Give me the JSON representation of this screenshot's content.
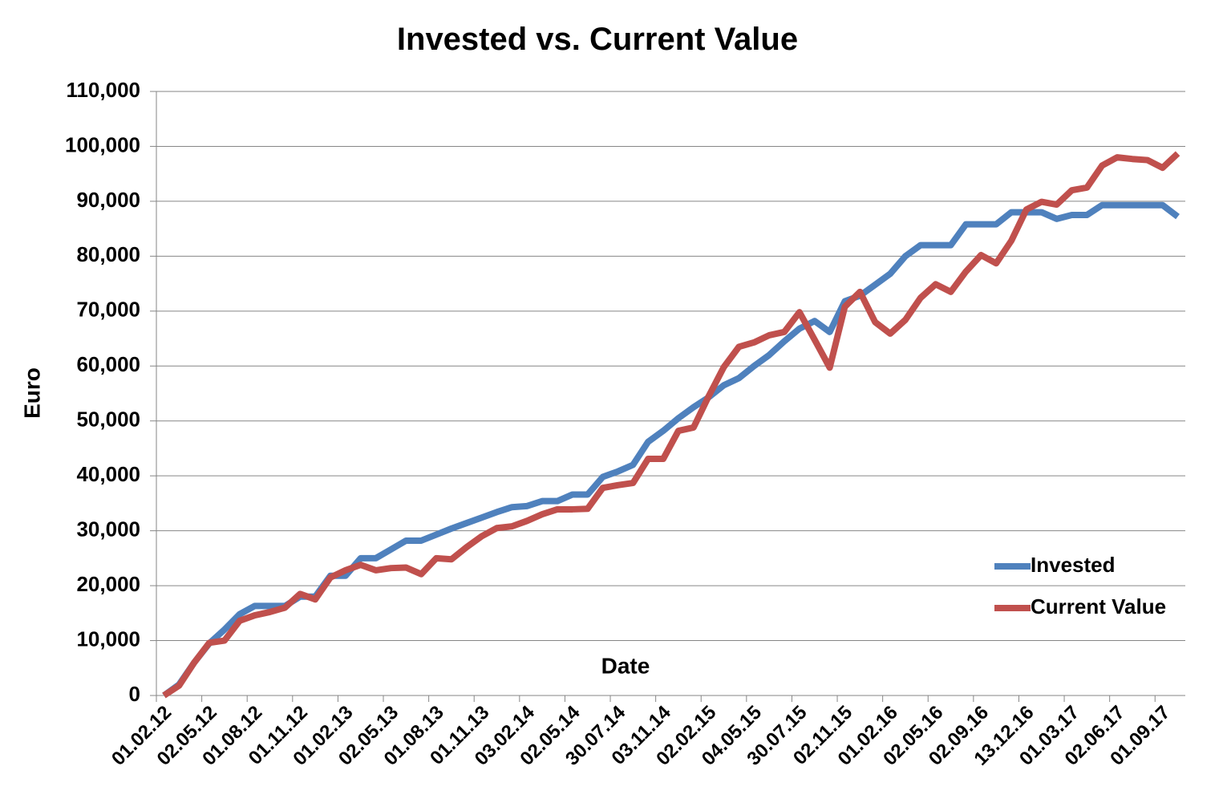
{
  "chart_data": {
    "type": "line",
    "title": "Invested vs. Current Value",
    "x_label": "Date",
    "y_label": "Euro",
    "categories": [
      "01.02.12",
      null,
      null,
      "02.05.12",
      null,
      null,
      "01.08.12",
      null,
      null,
      "01.11.12",
      null,
      null,
      "01.02.13",
      null,
      null,
      "02.05.13",
      null,
      null,
      "01.08.13",
      null,
      null,
      "01.11.13",
      null,
      null,
      "03.02.14",
      null,
      null,
      "02.05.14",
      null,
      null,
      "30.07.14",
      null,
      null,
      "03.11.14",
      null,
      null,
      "02.02.15",
      null,
      null,
      "04.05.15",
      null,
      null,
      "30.07.15",
      null,
      null,
      "02.11.15",
      null,
      null,
      "01.02.16",
      null,
      null,
      "02.05.16",
      null,
      null,
      "02.09.16",
      null,
      null,
      "13.12.16",
      null,
      null,
      "01.03.17",
      null,
      null,
      "02.06.17",
      null,
      null,
      "01.09.17",
      null
    ],
    "series": [
      {
        "name": "Invested",
        "color": "#4f81bd",
        "values": [
          0,
          2000,
          6000,
          9500,
          12000,
          14800,
          16300,
          16300,
          16300,
          18000,
          18000,
          21800,
          21800,
          25000,
          25000,
          26600,
          28200,
          28200,
          29300,
          30400,
          31400,
          32400,
          33400,
          34300,
          34500,
          35400,
          35400,
          36600,
          36600,
          39800,
          40800,
          42000,
          46200,
          48200,
          50500,
          52500,
          54300,
          56500,
          57800,
          60000,
          62000,
          64500,
          66800,
          68200,
          66200,
          71800,
          72800,
          74800,
          76800,
          80000,
          82000,
          82000,
          82000,
          85800,
          85800,
          85800,
          88000,
          88000,
          88000,
          86800,
          87500,
          87500,
          89300,
          89300,
          89300,
          89300,
          89300,
          87200
        ]
      },
      {
        "name": "Current Value",
        "color": "#c0504d",
        "values": [
          0,
          1800,
          6000,
          9600,
          10000,
          13600,
          14600,
          15200,
          16000,
          18500,
          17500,
          21500,
          22800,
          23800,
          22800,
          23200,
          23300,
          22100,
          25000,
          24800,
          27000,
          29000,
          30500,
          30800,
          31800,
          33000,
          33900,
          33900,
          34000,
          37800,
          38300,
          38700,
          43100,
          43100,
          48200,
          48800,
          54500,
          59800,
          63500,
          64300,
          65600,
          66200,
          69800,
          64800,
          59700,
          70800,
          73500,
          68000,
          65900,
          68400,
          72400,
          74900,
          73500,
          77200,
          80200,
          78700,
          82800,
          88500,
          89900,
          89400,
          92000,
          92500,
          96500,
          98000,
          97700,
          97500,
          96100,
          98700
        ]
      }
    ],
    "ylim": [
      0,
      110000
    ],
    "yticks": [
      0,
      {
        "value": 10000,
        "label": "10,000"
      },
      {
        "value": 20000,
        "label": "20,000"
      },
      {
        "value": 30000,
        "label": "30,000"
      },
      {
        "value": 40000,
        "label": "40,000"
      },
      {
        "value": 50000,
        "label": "50,000"
      },
      {
        "value": 60000,
        "label": "60,000"
      },
      {
        "value": 70000,
        "label": "70,000"
      },
      {
        "value": 80000,
        "label": "80,000"
      },
      {
        "value": 90000,
        "label": "90,000"
      },
      {
        "value": 100000,
        "label": "100,000"
      },
      {
        "value": 110000,
        "label": "110,000"
      }
    ],
    "grid": true,
    "legend": "lower right"
  }
}
